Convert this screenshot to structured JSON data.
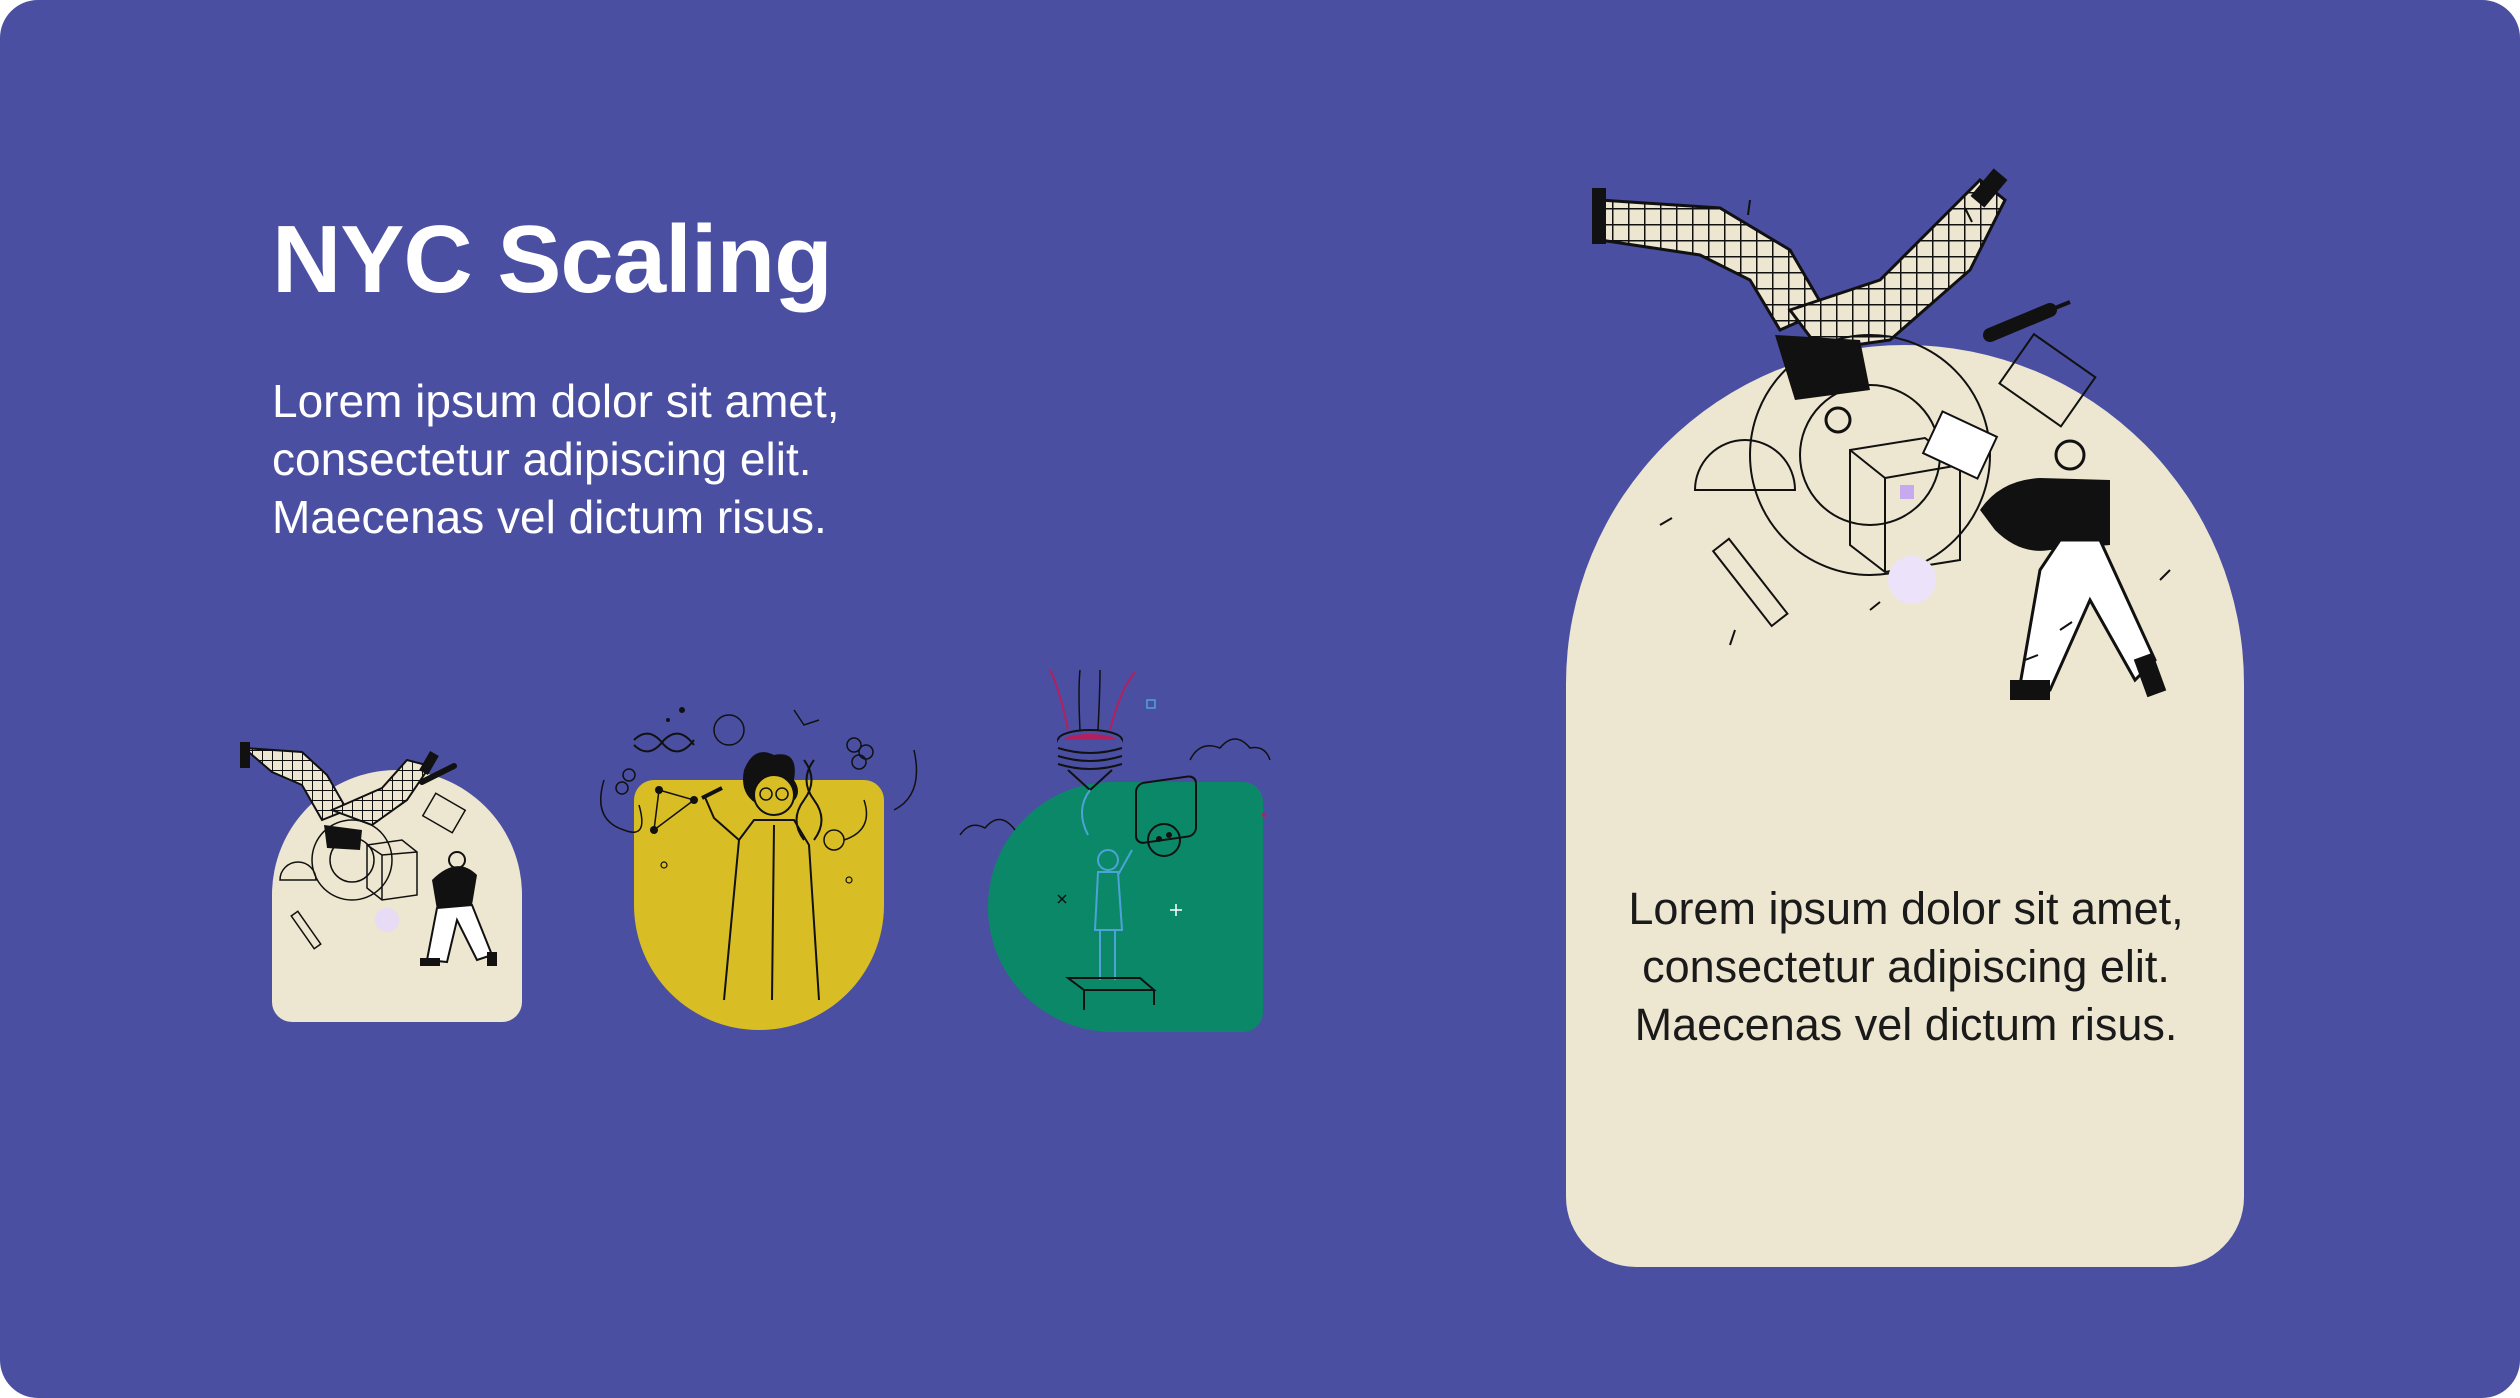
{
  "slide": {
    "title": "NYC Scaling",
    "intro_text": "Lorem ipsum dolor sit amet, consectetur adipiscing elit. Maecenas vel dictum risus.",
    "colors": {
      "background": "#4a4fa2",
      "cream": "#ede6d0",
      "mustard": "#d9bd24",
      "green": "#0b8868",
      "text_light": "#ffffff",
      "text_dark": "#1a1a1a"
    }
  },
  "thumbnails": [
    {
      "name": "person-lifting-box",
      "shape": "arch",
      "color": "#ede6d0"
    },
    {
      "name": "scientist",
      "shape": "inverted-arch",
      "color": "#d9bd24"
    },
    {
      "name": "person-plugging-socket",
      "shape": "rounded-corner",
      "color": "#0b8868"
    }
  ],
  "feature_card": {
    "illustration": "person-lifting-box",
    "body_text": "Lorem ipsum dolor sit amet, consectetur adipiscing elit. Maecenas vel dictum risus."
  }
}
